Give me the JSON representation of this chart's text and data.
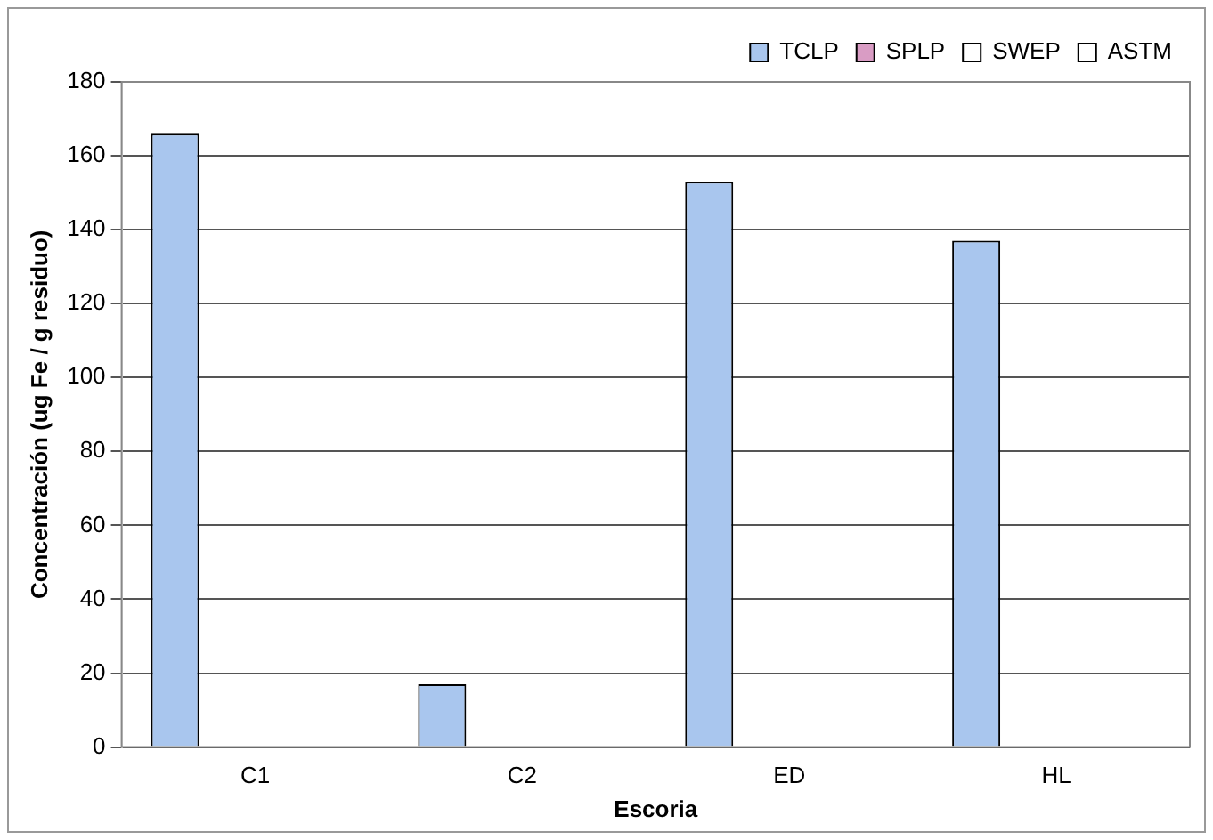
{
  "chart_data": {
    "type": "bar",
    "xlabel": "Escoria",
    "ylabel": "Concentración (ug Fe / g residuo)",
    "categories": [
      "C1",
      "C2",
      "ED",
      "HL"
    ],
    "series": [
      {
        "name": "TCLP",
        "color": "#a9c6ee",
        "values": [
          166,
          17,
          153,
          137
        ]
      },
      {
        "name": "SPLP",
        "color": "#d99cc4",
        "values": [
          null,
          null,
          null,
          null
        ]
      },
      {
        "name": "SWEP",
        "color": "#ffffff",
        "values": [
          null,
          null,
          null,
          null
        ]
      },
      {
        "name": "ASTM",
        "color": "#ffffff",
        "values": [
          null,
          null,
          null,
          null
        ]
      }
    ],
    "ylim": [
      0,
      180
    ],
    "yticks": [
      0,
      20,
      40,
      60,
      80,
      100,
      120,
      140,
      160,
      180
    ],
    "grid": "y",
    "legend": "top right"
  }
}
